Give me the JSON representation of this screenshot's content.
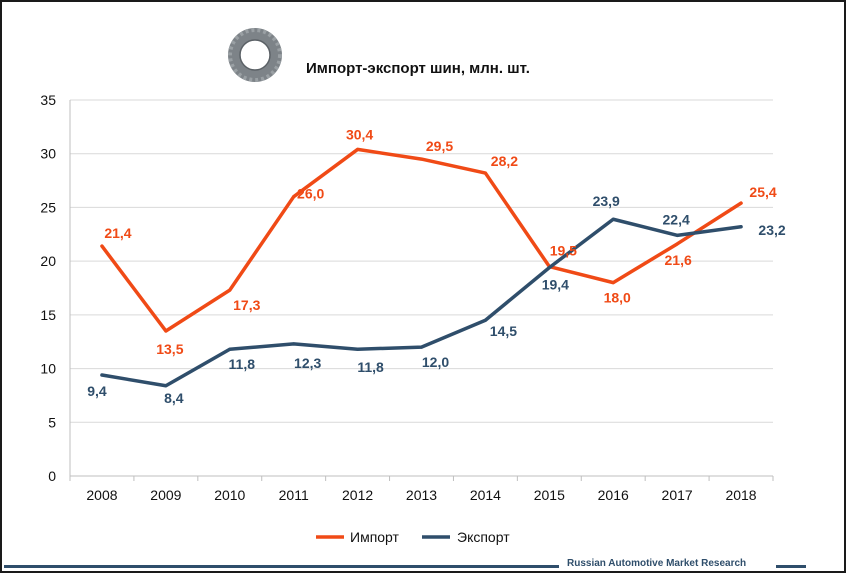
{
  "chart_data": {
    "type": "line",
    "title": "Импорт-экспорт шин, млн. шт.",
    "xlabel": "",
    "ylabel": "",
    "ylim": [
      0,
      35
    ],
    "yticks": [
      0,
      5,
      10,
      15,
      20,
      25,
      30,
      35
    ],
    "grid": true,
    "legend_position": "bottom",
    "categories": [
      "2008",
      "2009",
      "2010",
      "2011",
      "2012",
      "2013",
      "2014",
      "2015",
      "2016",
      "2017",
      "2018"
    ],
    "series": [
      {
        "name": "Импорт",
        "color": "#f04a16",
        "values": [
          21.4,
          13.5,
          17.3,
          26.0,
          30.4,
          29.5,
          28.2,
          19.5,
          18.0,
          21.6,
          25.4
        ],
        "labels": [
          "21,4",
          "13,5",
          "17,3",
          "26,0",
          "30,4",
          "29,5",
          "28,2",
          "19,5",
          "18,0",
          "21,6",
          "25,4"
        ]
      },
      {
        "name": "Экспорт",
        "color": "#2f4e6b",
        "values": [
          9.4,
          8.4,
          11.8,
          12.3,
          11.8,
          12.0,
          14.5,
          19.4,
          23.9,
          22.4,
          23.2
        ],
        "labels": [
          "9,4",
          "8,4",
          "11,8",
          "12,3",
          "11,8",
          "12,0",
          "14,5",
          "19,4",
          "23,9",
          "22,4",
          "23,2"
        ]
      }
    ]
  },
  "footer": {
    "source": "Russian Automotive Market Research"
  },
  "icons": {
    "title_icon": "tire-icon"
  }
}
